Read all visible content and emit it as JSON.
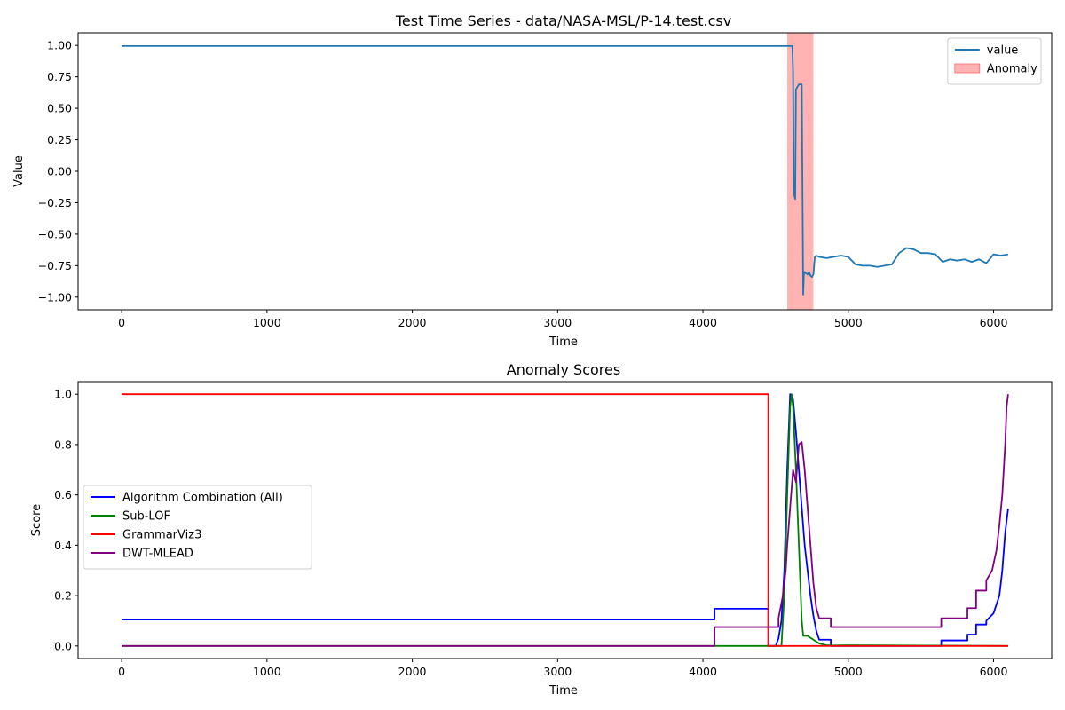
{
  "chart_data": [
    {
      "type": "line",
      "title": "Test Time Series - data/NASA-MSL/P-14.test.csv",
      "xlabel": "Time",
      "ylabel": "Value",
      "xlim": [
        -300,
        6400
      ],
      "ylim": [
        -1.1,
        1.1
      ],
      "x_ticks": [
        0,
        1000,
        2000,
        3000,
        4000,
        5000,
        6000
      ],
      "y_ticks": [
        -1.0,
        -0.75,
        -0.5,
        -0.25,
        0.0,
        0.25,
        0.5,
        0.75,
        1.0
      ],
      "x_tick_labels": [
        "0",
        "1000",
        "2000",
        "3000",
        "4000",
        "5000",
        "6000"
      ],
      "y_tick_labels": [
        "−1.00",
        "−0.75",
        "−0.50",
        "−0.25",
        "0.00",
        "0.25",
        "0.50",
        "0.75",
        "1.00"
      ],
      "legend_position": "top-right",
      "anomaly_region": {
        "name": "Anomaly",
        "x_start": 4580,
        "x_end": 4760,
        "color": "#ff9999"
      },
      "series": [
        {
          "name": "value",
          "color": "#1f77b4",
          "x": [
            0,
            500,
            1000,
            1500,
            2000,
            2500,
            3000,
            3500,
            4000,
            4500,
            4615,
            4620,
            4625,
            4628,
            4630,
            4635,
            4640,
            4645,
            4650,
            4655,
            4660,
            4665,
            4670,
            4680,
            4690,
            4695,
            4700,
            4705,
            4710,
            4720,
            4730,
            4740,
            4750,
            4760,
            4770,
            4780,
            4800,
            4850,
            4900,
            4950,
            5000,
            5050,
            5100,
            5150,
            5200,
            5250,
            5300,
            5350,
            5400,
            5450,
            5500,
            5550,
            5600,
            5650,
            5700,
            5750,
            5800,
            5850,
            5900,
            5950,
            6000,
            6050,
            6100
          ],
          "y": [
            0.995,
            0.995,
            0.995,
            0.995,
            0.995,
            0.995,
            0.995,
            0.995,
            0.995,
            0.995,
            0.995,
            0.8,
            -0.15,
            -0.18,
            -0.2,
            -0.22,
            0.65,
            0.66,
            0.67,
            0.68,
            0.69,
            0.69,
            0.69,
            0.69,
            -0.98,
            -0.8,
            -0.8,
            -0.81,
            -0.81,
            -0.82,
            -0.8,
            -0.83,
            -0.84,
            -0.82,
            -0.68,
            -0.67,
            -0.68,
            -0.69,
            -0.68,
            -0.67,
            -0.68,
            -0.74,
            -0.75,
            -0.75,
            -0.76,
            -0.75,
            -0.74,
            -0.65,
            -0.61,
            -0.62,
            -0.65,
            -0.65,
            -0.66,
            -0.72,
            -0.7,
            -0.71,
            -0.7,
            -0.72,
            -0.7,
            -0.73,
            -0.66,
            -0.67,
            -0.66
          ]
        }
      ]
    },
    {
      "type": "line",
      "title": "Anomaly Scores",
      "xlabel": "Time",
      "ylabel": "Score",
      "xlim": [
        -300,
        6400
      ],
      "ylim": [
        -0.05,
        1.05
      ],
      "x_ticks": [
        0,
        1000,
        2000,
        3000,
        4000,
        5000,
        6000
      ],
      "y_ticks": [
        0.0,
        0.2,
        0.4,
        0.6,
        0.8,
        1.0
      ],
      "x_tick_labels": [
        "0",
        "1000",
        "2000",
        "3000",
        "4000",
        "5000",
        "6000"
      ],
      "y_tick_labels": [
        "0.0",
        "0.2",
        "0.4",
        "0.6",
        "0.8",
        "1.0"
      ],
      "legend_position": "center-left",
      "series": [
        {
          "name": "Algorithm Combination (All)",
          "color": "#0000ff",
          "x": [
            0,
            4080,
            4080,
            4450,
            4450,
            4500,
            4520,
            4540,
            4560,
            4580,
            4600,
            4620,
            4640,
            4660,
            4680,
            4700,
            4720,
            4740,
            4760,
            4780,
            4800,
            4880,
            4880,
            5000,
            5600,
            5640,
            5640,
            5820,
            5820,
            5880,
            5880,
            5950,
            5950,
            6000,
            6040,
            6060,
            6080,
            6100
          ],
          "y": [
            0.105,
            0.105,
            0.148,
            0.148,
            0.0,
            0.0,
            0.03,
            0.1,
            0.3,
            0.7,
            1.0,
            0.98,
            0.85,
            0.7,
            0.55,
            0.4,
            0.3,
            0.2,
            0.12,
            0.06,
            0.025,
            0.025,
            0.0,
            0.0,
            0.0,
            0.0,
            0.022,
            0.022,
            0.045,
            0.045,
            0.085,
            0.085,
            0.1,
            0.13,
            0.2,
            0.3,
            0.45,
            0.545
          ]
        },
        {
          "name": "Sub-LOF",
          "color": "#008000",
          "x": [
            0,
            4450,
            4450,
            4540,
            4560,
            4580,
            4600,
            4610,
            4620,
            4640,
            4660,
            4680,
            4690,
            4720,
            4760,
            4800,
            4850,
            4900,
            5000,
            6100
          ],
          "y": [
            0.0,
            0.0,
            0.0,
            0.0,
            0.2,
            0.6,
            0.95,
            1.0,
            0.95,
            0.7,
            0.4,
            0.1,
            0.04,
            0.04,
            0.025,
            0.01,
            0.003,
            0.002,
            0.003,
            0.0
          ]
        },
        {
          "name": "GrammarViz3",
          "color": "#ff0000",
          "x": [
            0,
            4450,
            4450,
            6100
          ],
          "y": [
            1.0,
            1.0,
            0.0,
            0.0
          ]
        },
        {
          "name": "DWT-MLEAD",
          "color": "#800080",
          "x": [
            0,
            4080,
            4080,
            4520,
            4520,
            4550,
            4570,
            4580,
            4600,
            4620,
            4640,
            4660,
            4680,
            4700,
            4720,
            4740,
            4760,
            4780,
            4800,
            4820,
            4880,
            4880,
            5640,
            5640,
            5820,
            5820,
            5880,
            5880,
            5950,
            5950,
            5990,
            6020,
            6040,
            6060,
            6080,
            6090,
            6100
          ],
          "y": [
            0.0,
            0.0,
            0.075,
            0.075,
            0.11,
            0.2,
            0.3,
            0.4,
            0.55,
            0.7,
            0.65,
            0.8,
            0.81,
            0.7,
            0.55,
            0.4,
            0.25,
            0.15,
            0.11,
            0.11,
            0.11,
            0.075,
            0.075,
            0.11,
            0.11,
            0.15,
            0.15,
            0.22,
            0.22,
            0.26,
            0.3,
            0.38,
            0.48,
            0.6,
            0.8,
            0.95,
            1.0
          ]
        }
      ]
    }
  ],
  "colors": {
    "background": "#ffffff",
    "axes": "#000000"
  }
}
